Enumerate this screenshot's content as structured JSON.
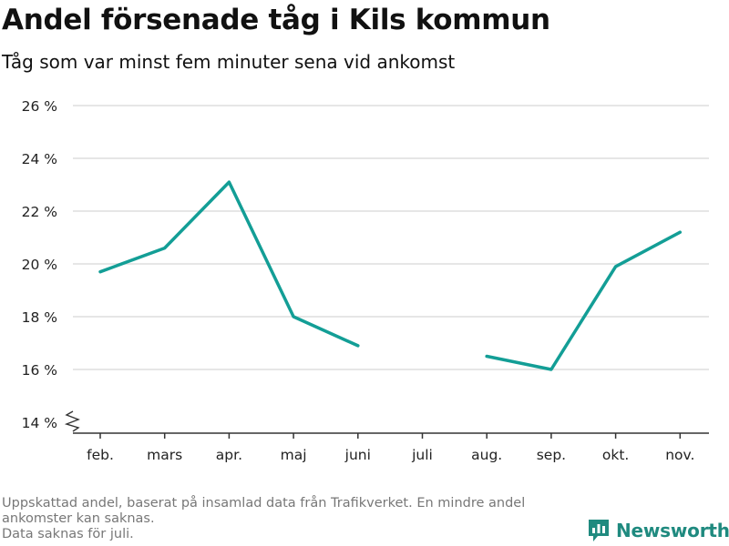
{
  "header": {
    "title": "Andel försenade tåg i Kils kommun",
    "subtitle": "Tåg som var minst fem minuter sena vid ankomst"
  },
  "footnote": {
    "line1": "Uppskattad andel, baserat på insamlad data från Trafikverket. En mindre andel ankomster kan saknas.",
    "line2": "Data saknas för juli."
  },
  "brand": {
    "name": "Newsworthy",
    "icon": "bar-chart-logo-icon"
  },
  "colors": {
    "line": "#139e96",
    "grid": "#dddddd",
    "axis": "#333333",
    "text": "#222222",
    "brand": "#1f8a7f"
  },
  "chart_data": {
    "type": "line",
    "categories": [
      "feb.",
      "mars",
      "apr.",
      "maj",
      "juni",
      "juli",
      "aug.",
      "sep.",
      "okt.",
      "nov."
    ],
    "series": [
      {
        "values": [
          19.7,
          20.6,
          23.1,
          18.0,
          16.9,
          null,
          16.5,
          16.0,
          19.9,
          21.2
        ]
      }
    ],
    "y_ticks": [
      14,
      16,
      18,
      20,
      22,
      24,
      26
    ],
    "y_tick_labels": [
      "14 %",
      "16 %",
      "18 %",
      "20 %",
      "22 %",
      "24 %",
      "26 %"
    ],
    "ylim": [
      14,
      26
    ],
    "y_axis_break": true,
    "grid": true,
    "legend": "none"
  }
}
